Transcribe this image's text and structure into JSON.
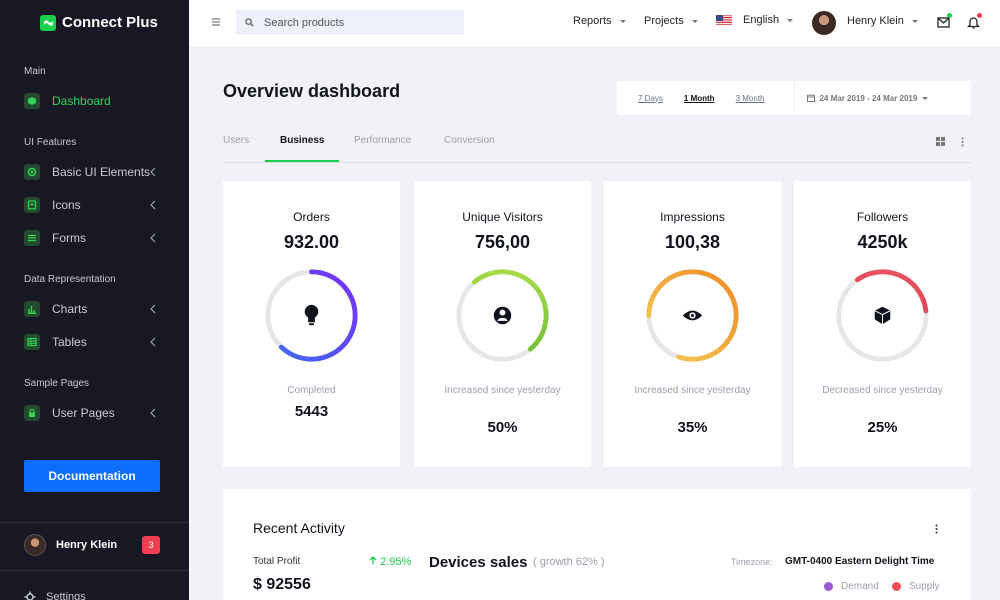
{
  "brand": {
    "name": "Connect Plus",
    "color": "#1bcf4c"
  },
  "sidebar": {
    "sections": [
      {
        "title": "Main"
      },
      {
        "title": "UI Features"
      },
      {
        "title": "Data Representation"
      },
      {
        "title": "Sample Pages"
      }
    ],
    "items": [
      {
        "label": "Dashboard",
        "icon": "cube-icon",
        "active": true
      },
      {
        "label": "Basic UI Elements",
        "icon": "crosshair-icon"
      },
      {
        "label": "Icons",
        "icon": "contacts-icon"
      },
      {
        "label": "Forms",
        "icon": "list-icon"
      },
      {
        "label": "Charts",
        "icon": "bar-chart-icon"
      },
      {
        "label": "Tables",
        "icon": "table-icon"
      },
      {
        "label": "User Pages",
        "icon": "lock-icon"
      }
    ],
    "documentation_label": "Documentation",
    "user": {
      "name": "Henry Klein",
      "badge": "3"
    },
    "settings_label": "Settings"
  },
  "topbar": {
    "search_placeholder": "Search products",
    "reports_label": "Reports",
    "projects_label": "Projects",
    "language_label": "English",
    "user_name": "Henry Klein"
  },
  "page": {
    "title": "Overview dashboard",
    "ranges": [
      "7 Days",
      "1 Month",
      "3 Month"
    ],
    "selected_range": "1 Month",
    "date_range": "24 Mar 2019 - 24 Mar 2019",
    "tabs": [
      "Users",
      "Business",
      "Performance",
      "Conversion"
    ],
    "active_tab": "Business"
  },
  "cards": [
    {
      "title": "Orders",
      "value": "932.00",
      "sub": "Completed",
      "stat": "5443",
      "progress": 0.62,
      "colors": [
        "#3b6cf6",
        "#7b2ff7"
      ],
      "icon": "lightbulb-icon"
    },
    {
      "title": "Unique Visitors",
      "value": "756,00",
      "sub": "Increased since yesterday",
      "stat": "50%",
      "progress": 0.5,
      "colors": [
        "#5fb531",
        "#b4e04c"
      ],
      "icon": "user-circle-icon"
    },
    {
      "title": "Impressions",
      "value": "100,38",
      "sub": "Increased since yesterday",
      "stat": "35%",
      "progress": 0.8,
      "colors": [
        "#f39c33",
        "#f3cf5a"
      ],
      "icon": "eye-icon"
    },
    {
      "title": "Followers",
      "value": "4250k",
      "sub": "Decreased since yesterday",
      "stat": "25%",
      "progress": 0.33,
      "colors": [
        "#c7263d",
        "#ee5a66"
      ],
      "icon": "box-icon"
    }
  ],
  "activity": {
    "title": "Recent Activity",
    "total_profit_label": "Total Profit",
    "total_profit": "$ 92556",
    "growth": "2.95%",
    "devices_title": "Devices sales",
    "devices_growth": "( growth 62% )",
    "timezone_label": "Timezone:",
    "timezone_value": "GMT-0400 Eastern Delight Time",
    "legend": [
      {
        "label": "Demand",
        "color": "#9b59d0"
      },
      {
        "label": "Supply",
        "color": "#f04c55"
      }
    ]
  }
}
